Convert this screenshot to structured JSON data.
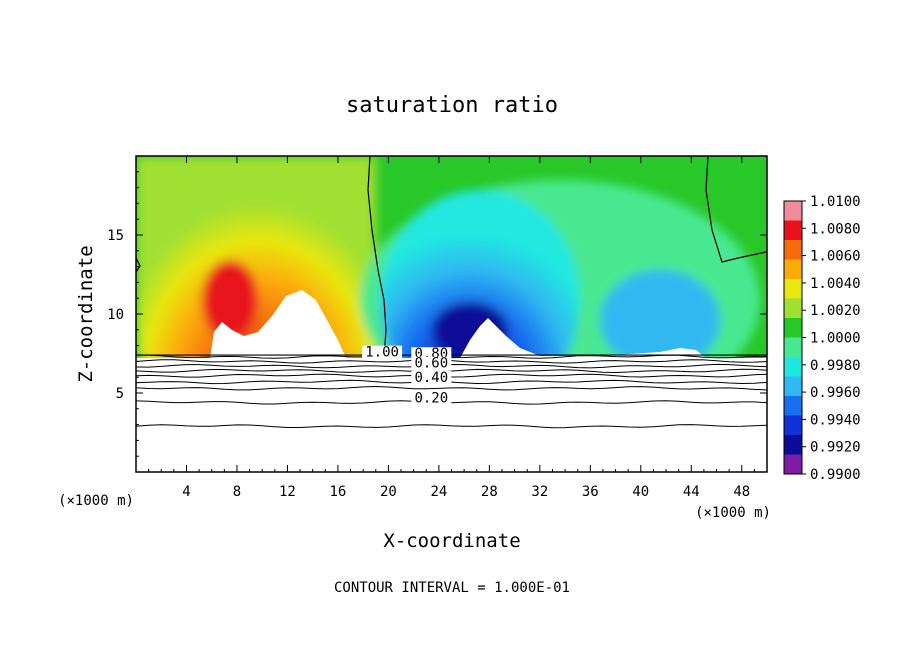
{
  "chart_data": {
    "type": "heatmap",
    "title": "saturation ratio",
    "xlabel": "X-coordinate",
    "ylabel": "Z-coordinate",
    "x_unit": "(×1000 m)",
    "xlim": [
      0,
      50
    ],
    "ylim": [
      0,
      20
    ],
    "x_ticks": [
      4,
      8,
      12,
      16,
      20,
      24,
      28,
      32,
      36,
      40,
      44,
      48
    ],
    "y_ticks": [
      5,
      10,
      15
    ],
    "footer": "CONTOUR INTERVAL = 1.000E-01",
    "colorbar": {
      "labels": [
        "1.0100",
        "1.0080",
        "1.0060",
        "1.0040",
        "1.0020",
        "1.0000",
        "0.9980",
        "0.9960",
        "0.9940",
        "0.9920",
        "0.9900"
      ],
      "colors": [
        "#f08c9c",
        "#e8121c",
        "#f46c0a",
        "#fcac08",
        "#e8e810",
        "#a0e030",
        "#28c828",
        "#48e890",
        "#20e8e0",
        "#30b8f0",
        "#1870f0",
        "#1030d8",
        "#0c0c98",
        "#7c1ca4"
      ]
    },
    "contour_labels": [
      {
        "value": "1.00",
        "x": 19.5,
        "y": 7.3
      },
      {
        "value": "0.80",
        "x": 23.4,
        "y": 7.2
      },
      {
        "value": "0.60",
        "x": 23.4,
        "y": 6.6
      },
      {
        "value": "0.40",
        "x": 23.4,
        "y": 5.7
      },
      {
        "value": "0.20",
        "x": 23.4,
        "y": 4.4
      }
    ],
    "contour_lines_z": [
      2.9,
      4.4,
      5.3,
      5.7,
      6.1,
      6.4,
      6.7,
      7.0,
      7.3
    ],
    "cloud_base_z": 7.4
  }
}
